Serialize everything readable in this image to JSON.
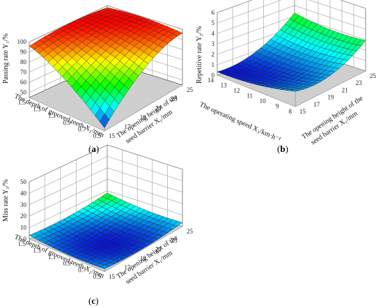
{
  "chart_data": [
    {
      "type": "surface",
      "panel": "(a)",
      "zlabel": "Passing rate Y₁/%",
      "xlabel": "The opening height of the seed barrier X₁/mm",
      "ylabel": "The depth of grooved teeth X₂/mm",
      "x_ticks": [
        "15",
        "17",
        "19",
        "21",
        "23",
        "25"
      ],
      "y_ticks": [
        "0.5",
        "0.7",
        "0.9",
        "1.1",
        "1.3",
        "1.5"
      ],
      "z_ticks": [
        "50",
        "60",
        "70",
        "80",
        "90",
        "100"
      ],
      "xlim": [
        15,
        25
      ],
      "ylim": [
        0.5,
        1.5
      ],
      "zlim": [
        45,
        100
      ],
      "z_min_value": 48,
      "z_max_value": 100,
      "colors": [
        "#0a14d2",
        "#00ffff",
        "#00ff00",
        "#ffff00",
        "#ff0000"
      ]
    },
    {
      "type": "surface",
      "panel": "(b)",
      "zlabel": "Repetitive rate Y₂/%",
      "xlabel": "The opening height of the seed barrier X₁/mm",
      "ylabel": "The operating speed X₃/km·h⁻¹",
      "x_ticks": [
        "15",
        "17",
        "19",
        "21",
        "23",
        "25"
      ],
      "y_ticks": [
        "8",
        "9",
        "10",
        "11",
        "12",
        "13",
        "14"
      ],
      "z_ticks": [
        "0",
        "1",
        "2",
        "3",
        "4",
        "5",
        "6"
      ],
      "xlim": [
        15,
        25
      ],
      "ylim": [
        8,
        14
      ],
      "zlim": [
        0,
        6
      ],
      "z_min_value": 0.3,
      "z_max_value": 3.3,
      "colors": [
        "#0a14d2",
        "#00ffff",
        "#00ff00"
      ]
    },
    {
      "type": "surface",
      "panel": "(c)",
      "zlabel": "Miss rate Y₃/%",
      "xlabel": "The opening height of the seed barrier X₁/mm",
      "ylabel": "The depth of grooved teeth X₂/mm",
      "x_ticks": [
        "15",
        "17",
        "19",
        "21",
        "23",
        "25"
      ],
      "y_ticks": [
        "0.5",
        "0.7",
        "0.9",
        "1.1",
        "1.3",
        "1.5"
      ],
      "z_ticks": [
        "0",
        "10",
        "20",
        "30",
        "40",
        "50"
      ],
      "xlim": [
        15,
        25
      ],
      "ylim": [
        0.5,
        1.5
      ],
      "zlim": [
        0,
        50
      ],
      "z_min_value": 0,
      "z_max_value": 8,
      "colors": [
        "#0a14d2",
        "#00ffff",
        "#00ff00"
      ]
    }
  ],
  "labels": {
    "a": "(a)",
    "b": "(b)",
    "c": "(c)"
  }
}
